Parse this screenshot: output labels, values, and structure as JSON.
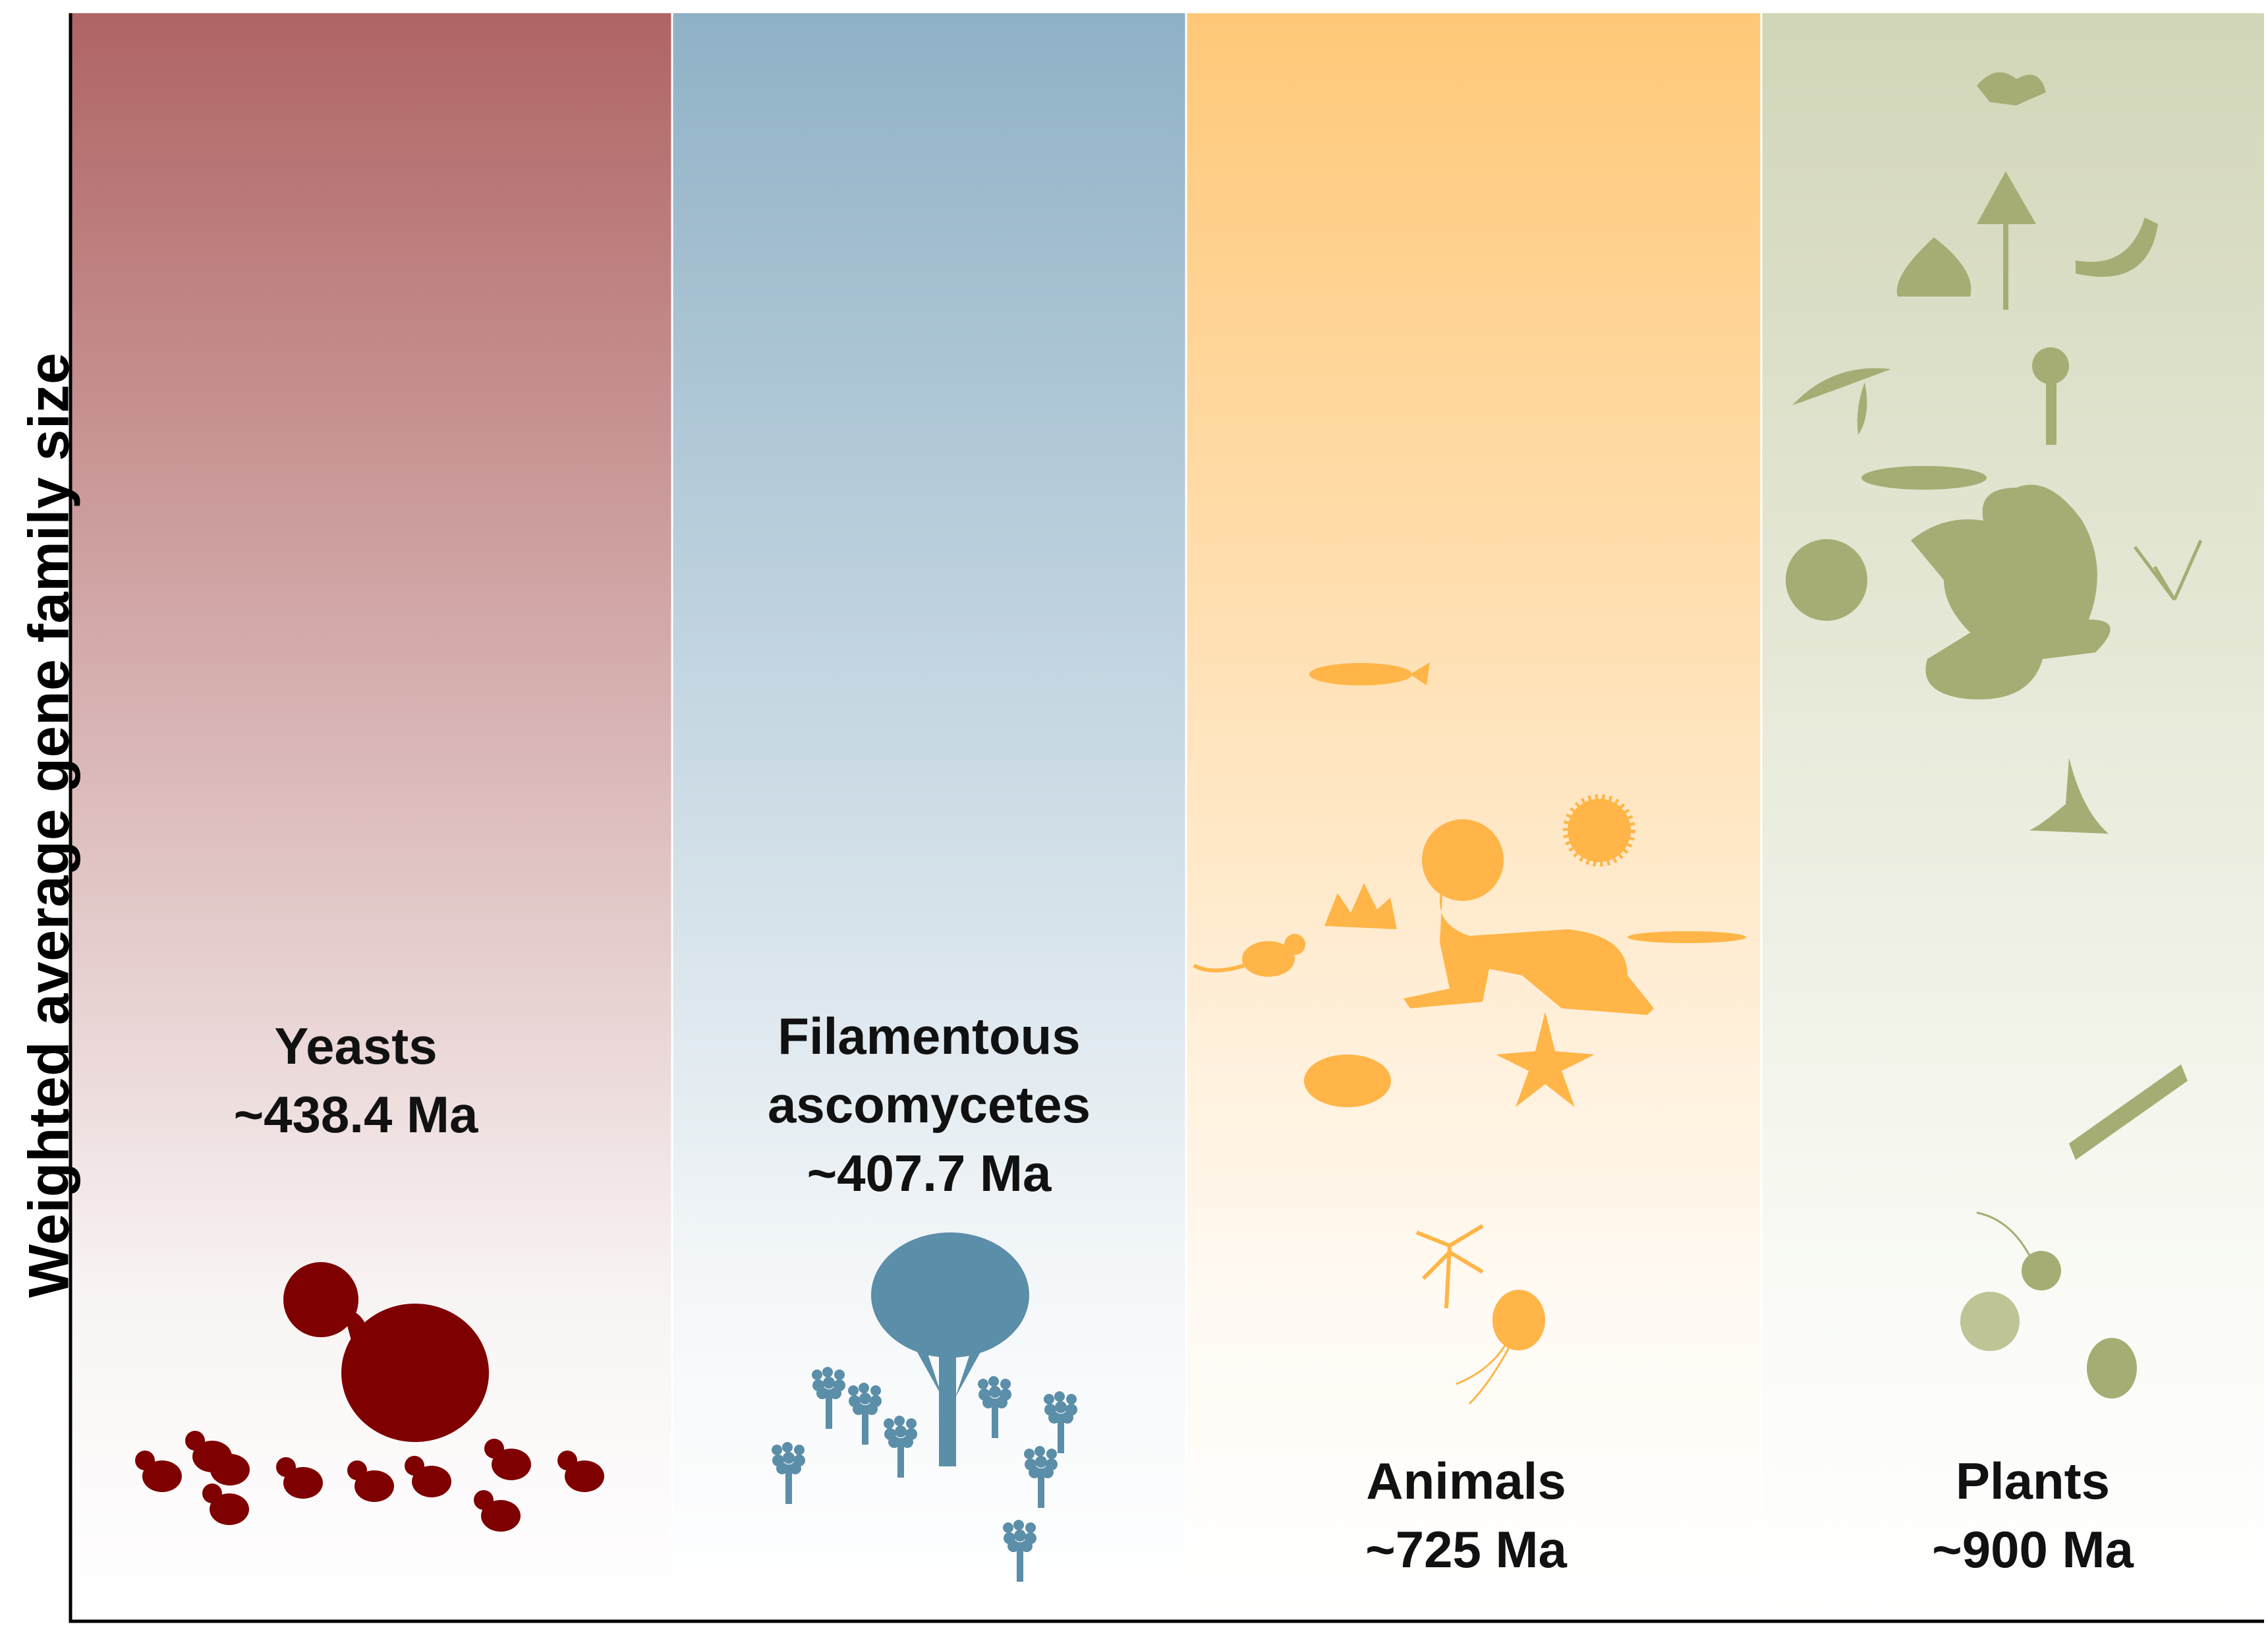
{
  "y_axis_label": "Weighted average gene family size",
  "groups": [
    {
      "name": "Yeasts",
      "age": "~438.4 Ma",
      "color": "#b06464"
    },
    {
      "name_line1": "Filamentous",
      "name_line2": "ascomycetes",
      "age": "~407.7 Ma",
      "color": "#8fb1c6"
    },
    {
      "name": "Animals",
      "age": "~725 Ma",
      "color": "#ffc46a"
    },
    {
      "name": "Plants",
      "age": "~900 Ma",
      "color": "#d2d6b8"
    }
  ],
  "icon_colors": {
    "yeast": "#7f0000",
    "fungus": "#5b8ea8",
    "animal": "#ffb547",
    "plant": "#a5ad74"
  }
}
